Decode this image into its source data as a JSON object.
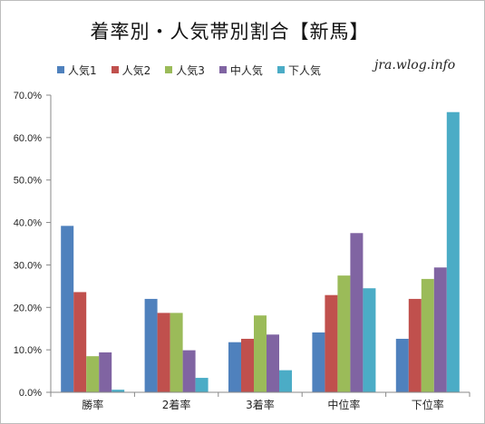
{
  "chart_data": {
    "type": "bar",
    "title": "着率別・人気帯別割合【新馬】",
    "watermark": "jra.wlog.info",
    "categories": [
      "勝率",
      "2着率",
      "3着率",
      "中位率",
      "下位率"
    ],
    "series": [
      {
        "name": "人気1",
        "color": "#4f81bd",
        "values": [
          39.2,
          22.0,
          11.8,
          14.1,
          12.6
        ]
      },
      {
        "name": "人気2",
        "color": "#c0504d",
        "values": [
          23.6,
          18.7,
          12.6,
          22.9,
          22.0
        ]
      },
      {
        "name": "人気3",
        "color": "#9bbb59",
        "values": [
          8.5,
          18.7,
          18.1,
          27.5,
          26.7
        ]
      },
      {
        "name": "中人気",
        "color": "#8064a2",
        "values": [
          9.4,
          9.9,
          13.6,
          37.5,
          29.4
        ]
      },
      {
        "name": "下人気",
        "color": "#4bacc6",
        "values": [
          0.6,
          3.4,
          5.2,
          24.5,
          66.0
        ]
      }
    ],
    "ylim": [
      0,
      70
    ],
    "yticks": [
      0,
      10,
      20,
      30,
      40,
      50,
      60,
      70
    ],
    "ytick_labels": [
      "0.0%",
      "10.0%",
      "20.0%",
      "30.0%",
      "40.0%",
      "50.0%",
      "60.0%",
      "70.0%"
    ],
    "grid": false,
    "legend_position": "top-left"
  }
}
